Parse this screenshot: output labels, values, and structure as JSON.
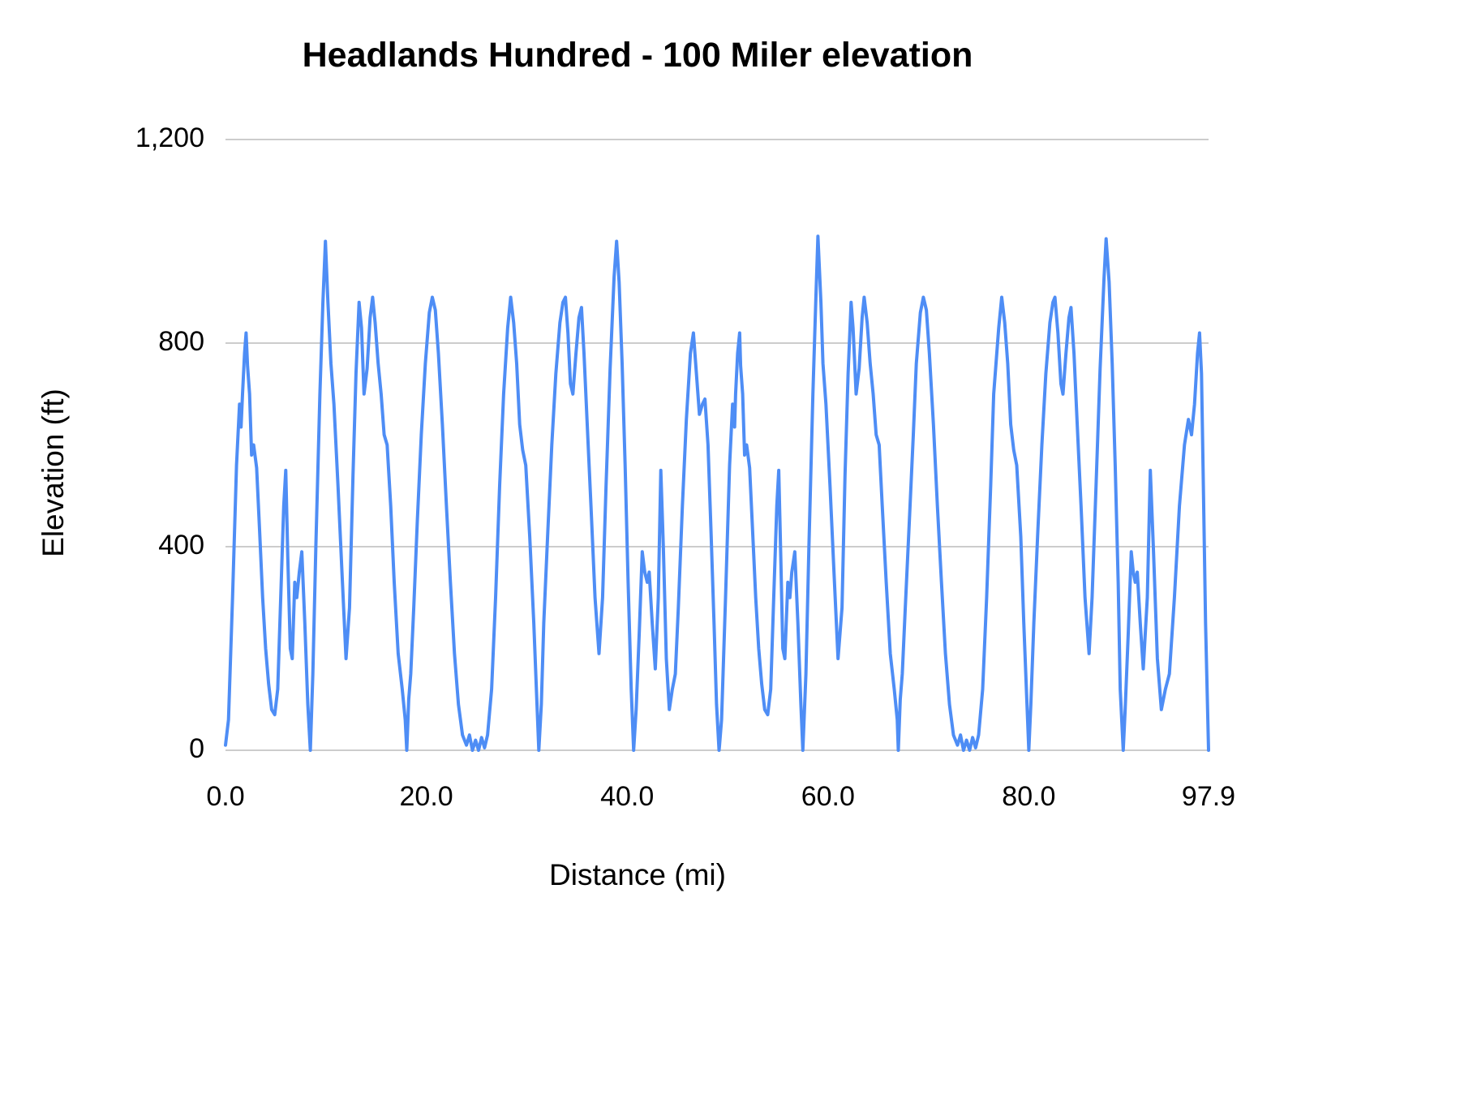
{
  "page": {
    "background": "#ffffff"
  },
  "chart_data": {
    "type": "line",
    "title": "Headlands Hundred - 100 Miler elevation",
    "xlabel": "Distance (mi)",
    "ylabel": "Elevation (ft)",
    "xlim": [
      0,
      97.9
    ],
    "ylim": [
      0,
      1200
    ],
    "grid": "horizontal",
    "legend": "none",
    "line_color": "#4e8df5",
    "gridline_color": "#cccccc",
    "x_ticks": [
      {
        "value": 0,
        "label": "0.0"
      },
      {
        "value": 20,
        "label": "20.0"
      },
      {
        "value": 40,
        "label": "40.0"
      },
      {
        "value": 60,
        "label": "60.0"
      },
      {
        "value": 80,
        "label": "80.0"
      },
      {
        "value": 97.9,
        "label": "97.9"
      }
    ],
    "y_ticks": [
      {
        "value": 0,
        "label": "0"
      },
      {
        "value": 400,
        "label": "400"
      },
      {
        "value": 800,
        "label": "800"
      },
      {
        "value": 1200,
        "label": "1,200"
      }
    ],
    "series_name": "Elevation",
    "profile": [
      [
        0.0,
        10
      ],
      [
        0.3,
        60
      ],
      [
        0.7,
        300
      ],
      [
        1.1,
        560
      ],
      [
        1.4,
        680
      ],
      [
        1.55,
        635
      ],
      [
        1.7,
        700
      ],
      [
        1.9,
        780
      ],
      [
        2.05,
        820
      ],
      [
        2.2,
        755
      ],
      [
        2.4,
        700
      ],
      [
        2.6,
        580
      ],
      [
        2.8,
        600
      ],
      [
        3.1,
        555
      ],
      [
        3.4,
        430
      ],
      [
        3.7,
        300
      ],
      [
        4.0,
        200
      ],
      [
        4.3,
        130
      ],
      [
        4.6,
        80
      ],
      [
        4.9,
        70
      ],
      [
        5.2,
        120
      ],
      [
        5.5,
        300
      ],
      [
        5.8,
        480
      ],
      [
        6.0,
        550
      ],
      [
        6.2,
        380
      ],
      [
        6.45,
        200
      ],
      [
        6.65,
        180
      ],
      [
        6.9,
        330
      ],
      [
        7.1,
        300
      ],
      [
        7.35,
        350
      ],
      [
        7.6,
        390
      ],
      [
        7.9,
        250
      ],
      [
        8.2,
        90
      ],
      [
        8.45,
        0
      ],
      [
        8.7,
        150
      ],
      [
        9.0,
        400
      ],
      [
        9.4,
        700
      ],
      [
        9.7,
        880
      ],
      [
        9.95,
        1000
      ],
      [
        10.2,
        880
      ],
      [
        10.5,
        760
      ],
      [
        10.8,
        680
      ],
      [
        11.2,
        520
      ],
      [
        11.6,
        350
      ],
      [
        12.0,
        180
      ],
      [
        12.35,
        280
      ],
      [
        12.7,
        540
      ],
      [
        13.0,
        740
      ],
      [
        13.3,
        880
      ],
      [
        13.55,
        830
      ],
      [
        13.8,
        700
      ],
      [
        14.1,
        750
      ],
      [
        14.4,
        850
      ],
      [
        14.65,
        890
      ],
      [
        14.9,
        840
      ],
      [
        15.2,
        760
      ],
      [
        15.5,
        700
      ],
      [
        15.8,
        620
      ],
      [
        16.1,
        600
      ],
      [
        16.45,
        480
      ],
      [
        16.8,
        330
      ],
      [
        17.2,
        190
      ],
      [
        17.6,
        120
      ],
      [
        17.9,
        60
      ],
      [
        18.05,
        0
      ],
      [
        18.25,
        100
      ],
      [
        18.45,
        150
      ],
      [
        18.75,
        280
      ],
      [
        19.1,
        450
      ],
      [
        19.5,
        620
      ],
      [
        19.9,
        760
      ],
      [
        20.3,
        860
      ],
      [
        20.6,
        890
      ],
      [
        20.9,
        865
      ],
      [
        21.2,
        780
      ],
      [
        21.6,
        640
      ],
      [
        22.0,
        480
      ],
      [
        22.4,
        330
      ],
      [
        22.8,
        190
      ],
      [
        23.2,
        90
      ],
      [
        23.6,
        30
      ],
      [
        24.0,
        10
      ],
      [
        24.3,
        30
      ],
      [
        24.6,
        0
      ],
      [
        24.9,
        20
      ],
      [
        25.2,
        0
      ],
      [
        25.5,
        25
      ],
      [
        25.8,
        5
      ],
      [
        26.1,
        30
      ],
      [
        26.5,
        120
      ],
      [
        26.9,
        300
      ],
      [
        27.3,
        520
      ],
      [
        27.7,
        700
      ],
      [
        28.1,
        830
      ],
      [
        28.4,
        890
      ],
      [
        28.7,
        840
      ],
      [
        29.0,
        760
      ],
      [
        29.3,
        640
      ],
      [
        29.6,
        590
      ],
      [
        29.9,
        560
      ],
      [
        30.3,
        420
      ],
      [
        30.7,
        250
      ],
      [
        31.0,
        100
      ],
      [
        31.2,
        0
      ],
      [
        31.45,
        90
      ],
      [
        31.7,
        250
      ],
      [
        32.1,
        430
      ],
      [
        32.5,
        600
      ],
      [
        32.9,
        740
      ],
      [
        33.3,
        840
      ],
      [
        33.6,
        880
      ],
      [
        33.85,
        890
      ],
      [
        34.1,
        820
      ],
      [
        34.35,
        720
      ],
      [
        34.6,
        700
      ],
      [
        34.9,
        780
      ],
      [
        35.2,
        850
      ],
      [
        35.45,
        870
      ],
      [
        35.7,
        780
      ],
      [
        36.0,
        650
      ],
      [
        36.4,
        480
      ],
      [
        36.8,
        300
      ],
      [
        37.2,
        190
      ],
      [
        37.55,
        300
      ],
      [
        37.9,
        520
      ],
      [
        38.3,
        750
      ],
      [
        38.7,
        930
      ],
      [
        38.95,
        1000
      ],
      [
        39.2,
        920
      ],
      [
        39.5,
        760
      ],
      [
        39.8,
        560
      ],
      [
        40.1,
        330
      ],
      [
        40.4,
        120
      ],
      [
        40.65,
        0
      ],
      [
        40.9,
        80
      ],
      [
        41.2,
        230
      ],
      [
        41.5,
        390
      ],
      [
        41.75,
        350
      ],
      [
        42.0,
        330
      ],
      [
        42.2,
        350
      ],
      [
        42.5,
        250
      ],
      [
        42.8,
        160
      ],
      [
        43.1,
        300
      ],
      [
        43.35,
        550
      ],
      [
        43.6,
        400
      ],
      [
        43.9,
        180
      ],
      [
        44.2,
        80
      ],
      [
        44.5,
        120
      ],
      [
        44.8,
        150
      ],
      [
        45.1,
        280
      ],
      [
        45.5,
        480
      ],
      [
        45.9,
        650
      ],
      [
        46.3,
        780
      ],
      [
        46.6,
        820
      ],
      [
        46.9,
        740
      ],
      [
        47.2,
        660
      ],
      [
        47.5,
        680
      ],
      [
        47.75,
        690
      ],
      [
        48.05,
        600
      ],
      [
        48.35,
        430
      ],
      [
        48.65,
        250
      ],
      [
        48.9,
        90
      ],
      [
        49.15,
        0
      ],
      [
        49.2,
        10
      ],
      [
        49.4,
        60
      ],
      [
        49.8,
        300
      ],
      [
        50.2,
        560
      ],
      [
        50.5,
        680
      ],
      [
        50.7,
        635
      ],
      [
        50.8,
        700
      ],
      [
        51.0,
        780
      ],
      [
        51.2,
        820
      ],
      [
        51.3,
        755
      ],
      [
        51.5,
        700
      ],
      [
        51.7,
        580
      ],
      [
        51.9,
        600
      ],
      [
        52.2,
        555
      ],
      [
        52.5,
        430
      ],
      [
        52.8,
        300
      ],
      [
        53.1,
        200
      ],
      [
        53.4,
        130
      ],
      [
        53.7,
        80
      ],
      [
        54.0,
        70
      ],
      [
        54.3,
        120
      ],
      [
        54.6,
        300
      ],
      [
        54.9,
        480
      ],
      [
        55.1,
        550
      ],
      [
        55.3,
        380
      ],
      [
        55.5,
        200
      ],
      [
        55.7,
        180
      ],
      [
        56.0,
        330
      ],
      [
        56.2,
        300
      ],
      [
        56.4,
        350
      ],
      [
        56.7,
        390
      ],
      [
        57.0,
        250
      ],
      [
        57.3,
        90
      ],
      [
        57.5,
        0
      ],
      [
        57.8,
        150
      ],
      [
        58.1,
        400
      ],
      [
        58.5,
        700
      ],
      [
        58.8,
        890
      ],
      [
        59.0,
        1010
      ],
      [
        59.3,
        880
      ],
      [
        59.5,
        760
      ],
      [
        59.8,
        680
      ],
      [
        60.2,
        520
      ],
      [
        60.6,
        350
      ],
      [
        61.0,
        180
      ],
      [
        61.4,
        280
      ],
      [
        61.7,
        540
      ],
      [
        62.0,
        740
      ],
      [
        62.3,
        880
      ],
      [
        62.5,
        830
      ],
      [
        62.8,
        700
      ],
      [
        63.1,
        750
      ],
      [
        63.4,
        850
      ],
      [
        63.6,
        890
      ],
      [
        63.9,
        840
      ],
      [
        64.2,
        760
      ],
      [
        64.5,
        700
      ],
      [
        64.8,
        620
      ],
      [
        65.1,
        600
      ],
      [
        65.4,
        480
      ],
      [
        65.8,
        330
      ],
      [
        66.2,
        190
      ],
      [
        66.6,
        120
      ],
      [
        66.9,
        60
      ],
      [
        67.0,
        0
      ],
      [
        67.2,
        100
      ],
      [
        67.4,
        150
      ],
      [
        67.7,
        280
      ],
      [
        68.1,
        450
      ],
      [
        68.5,
        620
      ],
      [
        68.8,
        760
      ],
      [
        69.2,
        860
      ],
      [
        69.5,
        890
      ],
      [
        69.8,
        865
      ],
      [
        70.1,
        780
      ],
      [
        70.5,
        640
      ],
      [
        70.9,
        480
      ],
      [
        71.3,
        330
      ],
      [
        71.7,
        190
      ],
      [
        72.1,
        90
      ],
      [
        72.5,
        30
      ],
      [
        72.9,
        10
      ],
      [
        73.2,
        30
      ],
      [
        73.5,
        0
      ],
      [
        73.8,
        20
      ],
      [
        74.1,
        0
      ],
      [
        74.4,
        25
      ],
      [
        74.7,
        5
      ],
      [
        75.0,
        30
      ],
      [
        75.4,
        120
      ],
      [
        75.8,
        300
      ],
      [
        76.2,
        520
      ],
      [
        76.5,
        700
      ],
      [
        77.0,
        830
      ],
      [
        77.3,
        890
      ],
      [
        77.6,
        840
      ],
      [
        77.9,
        760
      ],
      [
        78.2,
        640
      ],
      [
        78.5,
        590
      ],
      [
        78.8,
        560
      ],
      [
        79.2,
        420
      ],
      [
        79.5,
        250
      ],
      [
        79.8,
        100
      ],
      [
        80.0,
        0
      ],
      [
        80.2,
        90
      ],
      [
        80.5,
        250
      ],
      [
        80.9,
        430
      ],
      [
        81.3,
        600
      ],
      [
        81.7,
        740
      ],
      [
        82.1,
        840
      ],
      [
        82.4,
        880
      ],
      [
        82.6,
        890
      ],
      [
        82.9,
        820
      ],
      [
        83.2,
        720
      ],
      [
        83.4,
        700
      ],
      [
        83.7,
        780
      ],
      [
        84.0,
        850
      ],
      [
        84.2,
        870
      ],
      [
        84.5,
        780
      ],
      [
        84.8,
        650
      ],
      [
        85.2,
        480
      ],
      [
        85.6,
        300
      ],
      [
        86.0,
        190
      ],
      [
        86.3,
        300
      ],
      [
        86.7,
        520
      ],
      [
        87.1,
        750
      ],
      [
        87.5,
        930
      ],
      [
        87.7,
        1005
      ],
      [
        88.0,
        920
      ],
      [
        88.3,
        760
      ],
      [
        88.6,
        560
      ],
      [
        88.9,
        330
      ],
      [
        89.1,
        120
      ],
      [
        89.4,
        0
      ],
      [
        89.6,
        80
      ],
      [
        89.9,
        230
      ],
      [
        90.2,
        390
      ],
      [
        90.4,
        350
      ],
      [
        90.6,
        330
      ],
      [
        90.8,
        350
      ],
      [
        91.1,
        250
      ],
      [
        91.4,
        160
      ],
      [
        91.8,
        300
      ],
      [
        92.1,
        550
      ],
      [
        92.4,
        400
      ],
      [
        92.8,
        180
      ],
      [
        93.2,
        80
      ],
      [
        93.6,
        120
      ],
      [
        94.0,
        150
      ],
      [
        94.5,
        300
      ],
      [
        95.0,
        480
      ],
      [
        95.5,
        600
      ],
      [
        95.9,
        650
      ],
      [
        96.2,
        620
      ],
      [
        96.5,
        680
      ],
      [
        96.8,
        780
      ],
      [
        97.0,
        820
      ],
      [
        97.2,
        740
      ],
      [
        97.4,
        500
      ],
      [
        97.6,
        250
      ],
      [
        97.9,
        0
      ]
    ]
  }
}
